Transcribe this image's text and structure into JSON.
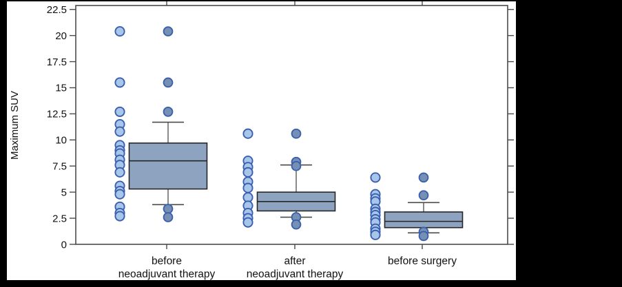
{
  "figure": {
    "background_color": "#000000",
    "canvas_color": "#ffffff"
  },
  "chart_data": {
    "type": "box",
    "title": "",
    "xlabel": "",
    "ylabel": "Maximum SUV",
    "ylim": [
      0,
      22.5
    ],
    "yticks": [
      "0",
      "2.5",
      "5",
      "7.5",
      "10",
      "12.5",
      "15",
      "17.5",
      "20",
      "22.5"
    ],
    "grid": false,
    "legend": null,
    "groups": [
      {
        "label": "before neoadjuvant therapy",
        "label_lines": [
          "before",
          "neoadjuvant therapy"
        ],
        "box": {
          "whisker_low": 3.8,
          "q1": 5.3,
          "median": 8.0,
          "q3": 9.7,
          "whisker_high": 11.7
        },
        "strip_values": [
          20.4,
          15.5,
          12.7,
          11.5,
          10.8,
          9.5,
          9.0,
          8.7,
          8.1,
          7.6,
          6.9,
          5.6,
          5.1,
          4.8,
          3.6,
          3.0,
          2.7
        ],
        "outlier_values": [
          20.4,
          15.5,
          12.7,
          3.4,
          2.6
        ]
      },
      {
        "label": "after neoadjuvant therapy",
        "label_lines": [
          "after",
          "neoadjuvant therapy"
        ],
        "box": {
          "whisker_low": 2.6,
          "q1": 3.2,
          "median": 4.1,
          "q3": 5.0,
          "whisker_high": 7.6
        },
        "strip_values": [
          10.6,
          8.0,
          7.4,
          6.9,
          6.0,
          5.4,
          4.5,
          3.7,
          3.0,
          2.5,
          2.1
        ],
        "outlier_values": [
          10.6,
          7.9,
          7.5,
          2.6,
          1.9
        ]
      },
      {
        "label": "before surgery",
        "label_lines": [
          "before surgery"
        ],
        "box": {
          "whisker_low": 1.1,
          "q1": 1.6,
          "median": 2.2,
          "q3": 3.1,
          "whisker_high": 4.0
        },
        "strip_values": [
          6.4,
          4.8,
          4.4,
          4.1,
          3.4,
          3.1,
          2.8,
          2.4,
          2.1,
          1.5,
          1.2,
          0.9
        ],
        "outlier_values": [
          6.4,
          4.7,
          1.2,
          0.8
        ]
      }
    ],
    "colors": {
      "strip_dot_fill": "#a8c6ea",
      "outlier_dot_fill": "#7690b4",
      "dot_stroke": "#3a5fae",
      "box_fill": "#8da3c0",
      "box_stroke": "#262626",
      "whisker": "#4a4a4a",
      "axis": "#4a4a4a",
      "text": "#111111"
    }
  }
}
